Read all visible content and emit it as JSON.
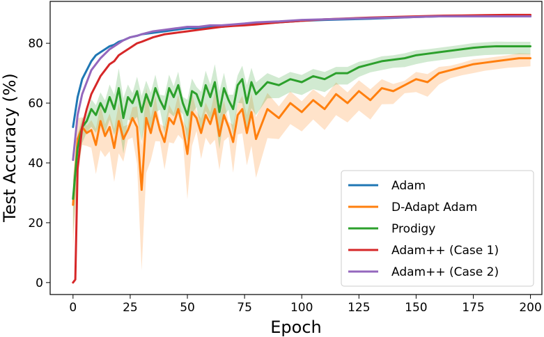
{
  "chart_data": {
    "type": "line",
    "xlabel": "Epoch",
    "ylabel": "Test Accuracy (%)",
    "xlim": [
      -10,
      205
    ],
    "ylim": [
      -4,
      94
    ],
    "xticks": [
      0,
      25,
      50,
      75,
      100,
      125,
      150,
      175,
      200
    ],
    "yticks": [
      0,
      20,
      40,
      60,
      80
    ],
    "grid": false,
    "legend_position": "lower-right",
    "series": [
      {
        "name": "Adam",
        "color": "#1f77b4",
        "x": [
          0,
          2,
          4,
          6,
          8,
          10,
          12,
          14,
          16,
          18,
          20,
          22,
          25,
          28,
          30,
          35,
          40,
          45,
          50,
          55,
          60,
          65,
          70,
          75,
          80,
          90,
          100,
          110,
          120,
          130,
          140,
          150,
          160,
          170,
          180,
          190,
          200
        ],
        "y": [
          52,
          62,
          68,
          71,
          74,
          76,
          77,
          78,
          79,
          79.5,
          80.5,
          81,
          82,
          82.5,
          83,
          83.5,
          84,
          84.5,
          85,
          85,
          85.5,
          85.5,
          86,
          86.5,
          86.5,
          87,
          87.5,
          87.8,
          88,
          88.2,
          88.5,
          88.8,
          89,
          89,
          89,
          89,
          89
        ]
      },
      {
        "name": "D-Adapt Adam",
        "color": "#ff7f0e",
        "band": true,
        "x": [
          0,
          2,
          4,
          6,
          8,
          10,
          12,
          14,
          16,
          18,
          20,
          22,
          24,
          26,
          28,
          30,
          32,
          34,
          36,
          38,
          40,
          42,
          44,
          46,
          48,
          50,
          52,
          54,
          56,
          58,
          60,
          62,
          64,
          66,
          68,
          70,
          72,
          74,
          76,
          78,
          80,
          85,
          90,
          95,
          100,
          105,
          110,
          115,
          120,
          125,
          130,
          135,
          140,
          145,
          150,
          155,
          160,
          165,
          170,
          175,
          180,
          185,
          190,
          195,
          200
        ],
        "y": [
          26,
          48,
          52,
          50,
          51,
          46,
          54,
          49,
          52,
          45,
          54,
          48,
          51,
          55,
          52,
          31,
          55,
          50,
          57,
          51,
          47,
          55,
          53,
          58,
          52,
          43,
          57,
          55,
          50,
          56,
          53,
          58,
          49,
          56,
          52,
          47,
          56,
          58,
          50,
          57,
          48,
          58,
          55,
          60,
          57,
          61,
          58,
          63,
          60,
          64,
          61,
          65,
          64,
          66,
          68,
          67,
          70,
          71,
          72,
          73,
          73.5,
          74,
          74.5,
          75,
          75
        ]
      },
      {
        "name": "Prodigy",
        "color": "#2ca02c",
        "band": true,
        "x": [
          0,
          2,
          4,
          6,
          8,
          10,
          12,
          14,
          16,
          18,
          20,
          22,
          24,
          26,
          28,
          30,
          32,
          34,
          36,
          38,
          40,
          42,
          44,
          46,
          48,
          50,
          52,
          54,
          56,
          58,
          60,
          62,
          64,
          66,
          68,
          70,
          72,
          74,
          76,
          78,
          80,
          85,
          90,
          95,
          100,
          105,
          110,
          115,
          120,
          125,
          130,
          135,
          140,
          145,
          150,
          155,
          160,
          165,
          170,
          175,
          180,
          185,
          190,
          195,
          200
        ],
        "y": [
          28,
          45,
          52,
          54,
          58,
          56,
          60,
          57,
          62,
          58,
          65,
          55,
          62,
          60,
          64,
          57,
          63,
          59,
          65,
          61,
          58,
          65,
          62,
          66,
          60,
          56,
          64,
          63,
          59,
          66,
          62,
          67,
          57,
          65,
          61,
          58,
          66,
          68,
          60,
          67,
          63,
          67,
          66,
          68,
          67,
          69,
          68,
          70,
          70,
          72,
          73,
          74,
          74.5,
          75,
          76,
          76.5,
          77,
          77.5,
          78,
          78.5,
          78.8,
          79,
          79,
          79,
          79
        ]
      },
      {
        "name": "Adam++ (Case 1)",
        "color": "#d62728",
        "x": [
          0,
          1,
          2,
          4,
          6,
          8,
          10,
          12,
          14,
          16,
          18,
          20,
          22,
          25,
          28,
          30,
          35,
          40,
          45,
          50,
          55,
          60,
          65,
          70,
          75,
          80,
          90,
          100,
          110,
          120,
          130,
          140,
          150,
          160,
          170,
          180,
          190,
          200
        ],
        "y": [
          0,
          1,
          38,
          52,
          58,
          63,
          66,
          69,
          71,
          73,
          74,
          76,
          77,
          78.5,
          80,
          80.5,
          82,
          83,
          83.5,
          84,
          84.5,
          85,
          85.5,
          85.8,
          86,
          86.3,
          87,
          87.5,
          88,
          88.3,
          88.6,
          88.8,
          89,
          89.2,
          89.3,
          89.4,
          89.5,
          89.5
        ]
      },
      {
        "name": "Adam++ (Case 2)",
        "color": "#9467bd",
        "x": [
          0,
          2,
          4,
          6,
          8,
          10,
          12,
          14,
          16,
          18,
          20,
          22,
          25,
          28,
          30,
          35,
          40,
          45,
          50,
          55,
          60,
          65,
          70,
          75,
          80,
          90,
          100,
          110,
          120,
          130,
          140,
          150,
          160,
          170,
          180,
          190,
          200
        ],
        "y": [
          41,
          56,
          63,
          67,
          71,
          73,
          75,
          76.5,
          78,
          79,
          80,
          81,
          82,
          82.5,
          83,
          84,
          84.5,
          85,
          85.5,
          85.5,
          86,
          86,
          86.3,
          86.6,
          87,
          87.3,
          87.8,
          88,
          88.2,
          88.4,
          88.6,
          88.8,
          89,
          89,
          89,
          89,
          89
        ]
      }
    ]
  }
}
